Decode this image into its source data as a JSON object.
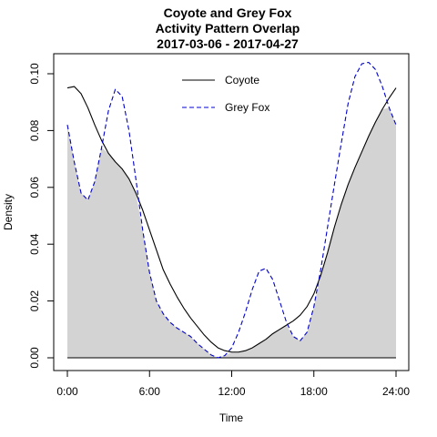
{
  "chart_data": {
    "type": "line",
    "title_lines": [
      "Coyote and Grey Fox",
      "Activity Pattern Overlap",
      "2017-03-06 - 2017-04-27"
    ],
    "xlabel": "Time",
    "ylabel": "Density",
    "xlim": [
      0,
      24
    ],
    "ylim": [
      0,
      0.1
    ],
    "x_ticks": [
      0,
      6,
      12,
      18,
      24
    ],
    "x_tick_labels": [
      "0:00",
      "6:00",
      "12:00",
      "18:00",
      "24:00"
    ],
    "y_ticks": [
      0,
      0.02,
      0.04,
      0.06,
      0.08,
      0.1
    ],
    "y_tick_labels": [
      "0.00",
      "0.02",
      "0.04",
      "0.06",
      "0.08",
      "0.10"
    ],
    "grid": false,
    "legend_position": "top-center",
    "overlap_fill_color": "#d3d3d3",
    "series": [
      {
        "name": "Coyote",
        "color": "#000000",
        "dash": "solid",
        "x": [
          0,
          0.5,
          1,
          1.5,
          2,
          2.5,
          3,
          3.5,
          4,
          4.5,
          5,
          5.5,
          6,
          6.5,
          7,
          7.5,
          8,
          8.5,
          9,
          9.5,
          10,
          10.5,
          11,
          11.5,
          12,
          12.5,
          13,
          13.5,
          14,
          14.5,
          15,
          15.5,
          16,
          16.5,
          17,
          17.5,
          18,
          18.5,
          19,
          19.5,
          20,
          20.5,
          21,
          21.5,
          22,
          22.5,
          23,
          23.5,
          24
        ],
        "y": [
          0.095,
          0.0955,
          0.093,
          0.088,
          0.082,
          0.0765,
          0.072,
          0.069,
          0.0665,
          0.063,
          0.058,
          0.052,
          0.045,
          0.038,
          0.031,
          0.026,
          0.0215,
          0.0175,
          0.014,
          0.011,
          0.008,
          0.0055,
          0.0035,
          0.0025,
          0.002,
          0.002,
          0.0025,
          0.0035,
          0.005,
          0.0065,
          0.0085,
          0.01,
          0.0115,
          0.013,
          0.015,
          0.018,
          0.0225,
          0.029,
          0.037,
          0.046,
          0.054,
          0.061,
          0.067,
          0.0725,
          0.078,
          0.083,
          0.0875,
          0.0915,
          0.095
        ]
      },
      {
        "name": "Grey Fox",
        "color": "#0000cc",
        "dash": "dashed",
        "x": [
          0,
          0.5,
          1,
          1.5,
          2,
          2.5,
          3,
          3.5,
          4,
          4.5,
          5,
          5.5,
          6,
          6.5,
          7,
          7.5,
          8,
          8.5,
          9,
          9.5,
          10,
          10.5,
          11,
          11.5,
          12,
          12.5,
          13,
          13.5,
          14,
          14.5,
          15,
          15.5,
          16,
          16.5,
          17,
          17.5,
          18,
          18.5,
          19,
          19.5,
          20,
          20.5,
          21,
          21.5,
          22,
          22.5,
          23,
          23.5,
          24
        ],
        "y": [
          0.082,
          0.069,
          0.058,
          0.0555,
          0.062,
          0.074,
          0.087,
          0.0945,
          0.092,
          0.08,
          0.063,
          0.045,
          0.03,
          0.02,
          0.0155,
          0.0125,
          0.0105,
          0.009,
          0.0075,
          0.005,
          0.003,
          0.001,
          0.0,
          0.0008,
          0.0035,
          0.009,
          0.016,
          0.024,
          0.0305,
          0.0315,
          0.0275,
          0.02,
          0.0125,
          0.0075,
          0.006,
          0.009,
          0.018,
          0.031,
          0.046,
          0.061,
          0.0755,
          0.0895,
          0.099,
          0.1035,
          0.104,
          0.1015,
          0.0955,
          0.088,
          0.082
        ]
      }
    ]
  }
}
